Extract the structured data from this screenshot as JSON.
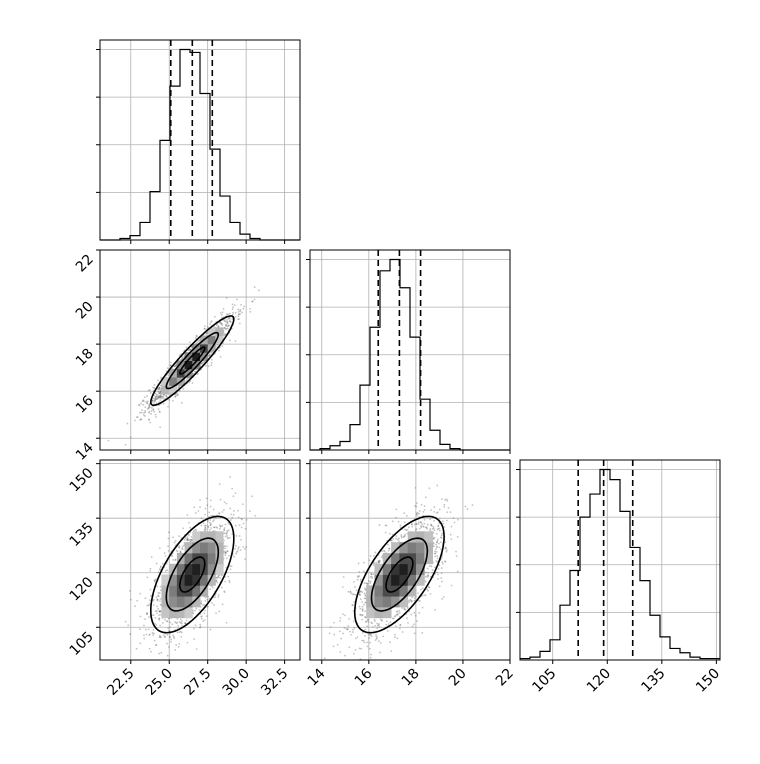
{
  "chart_data": {
    "type": "corner",
    "title": "",
    "grid": true,
    "colors": {
      "axis": "#000000",
      "grid": "#b0b0b0",
      "hist": "#000000",
      "points": "#555555",
      "quantile_lines": "#000000",
      "density_cmap": [
        "#ffffff",
        "#000000"
      ]
    },
    "parameters": [
      {
        "label": "",
        "range": [
          20.5,
          33.5
        ],
        "ticks": [
          "22.5",
          "25.0",
          "27.5",
          "30.0",
          "32.5"
        ],
        "tick_values": [
          22.5,
          25.0,
          27.5,
          30.0,
          32.5
        ],
        "quantiles": [
          25.1,
          26.5,
          27.8
        ]
      },
      {
        "label": "",
        "range": [
          13.5,
          22.0
        ],
        "ticks": [
          "14",
          "16",
          "18",
          "20",
          "22"
        ],
        "tick_values": [
          14,
          16,
          18,
          20,
          22
        ],
        "quantiles": [
          16.4,
          17.3,
          18.2
        ]
      },
      {
        "label": "",
        "range": [
          96,
          151
        ],
        "ticks": [
          "105",
          "120",
          "135",
          "150"
        ],
        "tick_values": [
          105,
          120,
          135,
          150
        ],
        "quantiles": [
          112,
          119,
          127
        ]
      }
    ],
    "histograms": [
      {
        "param": 0,
        "bin_edges": [
          20.5,
          21.15,
          21.8,
          22.45,
          23.1,
          23.75,
          24.4,
          25.05,
          25.7,
          26.35,
          27.0,
          27.65,
          28.3,
          28.95,
          29.6,
          30.25,
          30.9,
          31.55,
          32.2,
          32.85,
          33.5
        ],
        "counts": [
          0,
          0,
          1,
          3,
          12,
          33,
          68,
          105,
          130,
          128,
          100,
          62,
          30,
          12,
          4,
          1,
          0,
          0,
          0,
          0
        ]
      },
      {
        "param": 1,
        "bin_edges": [
          13.5,
          13.925,
          14.35,
          14.775,
          15.2,
          15.625,
          16.05,
          16.475,
          16.9,
          17.325,
          17.75,
          18.175,
          18.6,
          19.025,
          19.45,
          19.875,
          20.3,
          20.725,
          21.15,
          21.575,
          22.0
        ],
        "counts": [
          0,
          1,
          3,
          6,
          18,
          46,
          87,
          127,
          135,
          115,
          80,
          36,
          14,
          4,
          1,
          0,
          0,
          0,
          0,
          0
        ]
      },
      {
        "param": 2,
        "bin_edges": [
          96,
          98.75,
          101.5,
          104.25,
          107,
          109.75,
          112.5,
          115.25,
          118,
          120.75,
          123.5,
          126.25,
          129,
          131.75,
          134.5,
          137.25,
          140,
          142.75,
          145.5,
          148.25,
          151
        ],
        "counts": [
          1,
          2,
          6,
          14,
          38,
          62,
          99,
          115,
          132,
          125,
          103,
          78,
          55,
          31,
          16,
          8,
          5,
          2,
          1,
          1
        ]
      }
    ],
    "pairs": [
      {
        "x": 0,
        "y": 1,
        "center": [
          26.5,
          17.3
        ],
        "sigma": [
          1.35,
          0.95
        ],
        "correlation": 0.93
      },
      {
        "x": 0,
        "y": 2,
        "center": [
          26.5,
          119.5
        ],
        "sigma": [
          1.35,
          8.0
        ],
        "correlation": 0.62
      },
      {
        "x": 1,
        "y": 2,
        "center": [
          17.3,
          119.5
        ],
        "sigma": [
          0.95,
          8.0
        ],
        "correlation": 0.65
      }
    ]
  }
}
